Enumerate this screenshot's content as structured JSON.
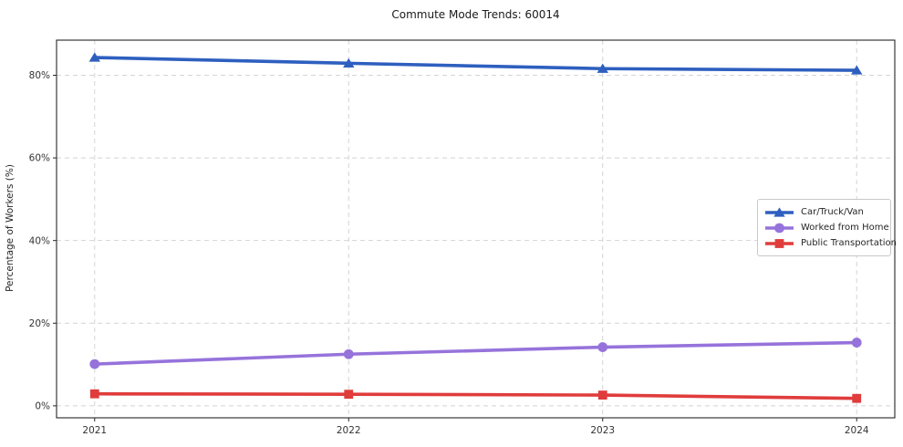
{
  "chart_data": {
    "type": "line",
    "title": "Commute Mode Trends: 60014",
    "xlabel": "",
    "ylabel": "Percentage of Workers (%)",
    "x": [
      2021,
      2022,
      2023,
      2024
    ],
    "x_tick_labels": [
      "2021",
      "2022",
      "2023",
      "2024"
    ],
    "y_ticks": [
      0,
      20,
      40,
      60,
      80
    ],
    "y_tick_labels": [
      "0%",
      "20%",
      "40%",
      "60%",
      "80%"
    ],
    "xlim": [
      2020.85,
      2024.15
    ],
    "ylim": [
      -2.9,
      88.5
    ],
    "grid": "dashed",
    "legend_position": "center right",
    "series": [
      {
        "name": "Car/Truck/Van",
        "marker": "triangle",
        "color": "#2e5fbf",
        "values": [
          84.3,
          82.9,
          81.6,
          81.2
        ]
      },
      {
        "name": "Worked from Home",
        "marker": "circle",
        "color": "#9673db",
        "values": [
          10.1,
          12.5,
          14.2,
          15.3
        ]
      },
      {
        "name": "Public Transportation",
        "marker": "square",
        "color": "#e03c3c",
        "values": [
          2.9,
          2.8,
          2.6,
          1.8
        ]
      }
    ],
    "colors": {
      "grid": "#d4d4d4",
      "spine": "#262626",
      "tick_text": "#333333",
      "background": "#ffffff"
    }
  }
}
